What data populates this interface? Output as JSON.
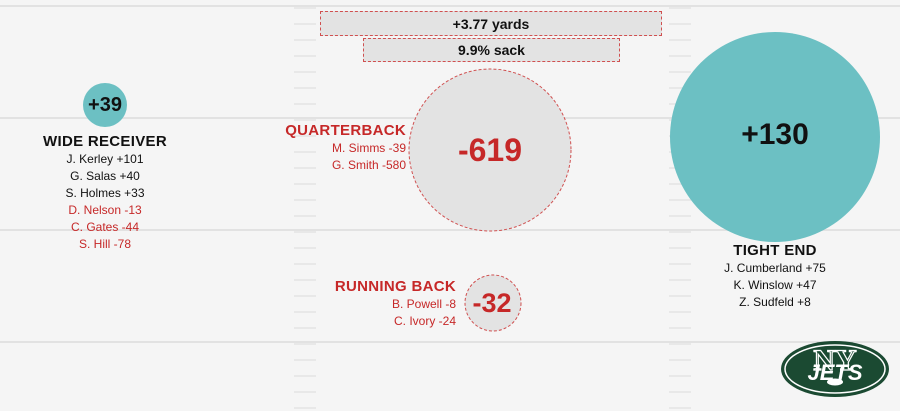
{
  "colors": {
    "positive": "#6cc0c3",
    "negative": "#e3e3e3",
    "negative_stroke": "#d05050",
    "red_text": "#c62828",
    "black_text": "#111111",
    "field_line": "#e2e2e2",
    "jets_green": "#1b4a32"
  },
  "summary": {
    "yards": "+3.77 yards",
    "sack": "9.9% sack"
  },
  "logo": {
    "text": "JETS",
    "monogram": "NY"
  },
  "chart_data": {
    "type": "bubble",
    "title": "",
    "positions": [
      {
        "key": "wr",
        "name": "WIDE RECEIVER",
        "value": 39,
        "label": "+39",
        "players": [
          {
            "text": "J. Kerley +101",
            "value": 101
          },
          {
            "text": "G. Salas +40",
            "value": 40
          },
          {
            "text": "S. Holmes +33",
            "value": 33
          },
          {
            "text": "D. Nelson -13",
            "value": -13
          },
          {
            "text": "C. Gates -44",
            "value": -44
          },
          {
            "text": "S. Hill -78",
            "value": -78
          }
        ]
      },
      {
        "key": "qb",
        "name": "QUARTERBACK",
        "value": -619,
        "label": "-619",
        "players": [
          {
            "text": "M. Simms -39",
            "value": -39
          },
          {
            "text": "G. Smith -580",
            "value": -580
          }
        ]
      },
      {
        "key": "rb",
        "name": "RUNNING BACK",
        "value": -32,
        "label": "-32",
        "players": [
          {
            "text": "B. Powell -8",
            "value": -8
          },
          {
            "text": "C. Ivory -24",
            "value": -24
          }
        ]
      },
      {
        "key": "te",
        "name": "TIGHT END",
        "value": 130,
        "label": "+130",
        "players": [
          {
            "text": "J. Cumberland +75",
            "value": 75
          },
          {
            "text": "K. Winslow +47",
            "value": 47
          },
          {
            "text": "Z. Sudfeld +8",
            "value": 8
          }
        ]
      }
    ]
  }
}
